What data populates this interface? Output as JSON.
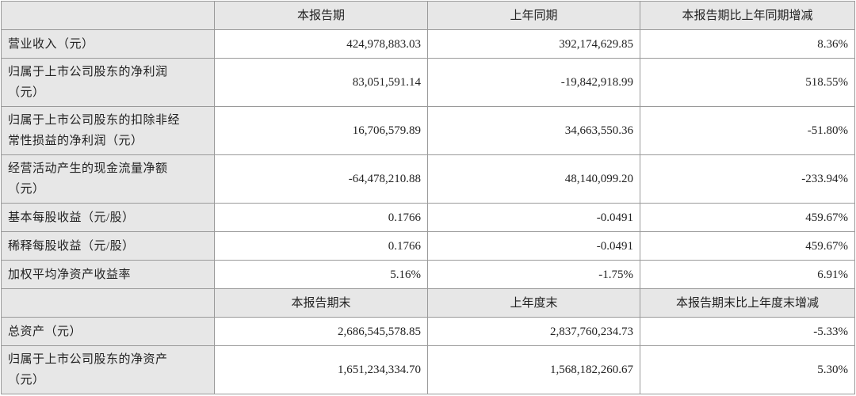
{
  "sections": [
    {
      "headers": [
        "本报告期",
        "上年同期",
        "本报告期比上年同期增减"
      ],
      "rows": [
        {
          "label": [
            "营业收入（元）"
          ],
          "cells": [
            "424,978,883.03",
            "392,174,629.85",
            "8.36%"
          ]
        },
        {
          "label": [
            "归属于上市公司股东的净利润",
            "（元）"
          ],
          "cells": [
            "83,051,591.14",
            "-19,842,918.99",
            "518.55%"
          ]
        },
        {
          "label": [
            "归属于上市公司股东的扣除非经",
            "常性损益的净利润（元）"
          ],
          "cells": [
            "16,706,579.89",
            "34,663,550.36",
            "-51.80%"
          ]
        },
        {
          "label": [
            "经营活动产生的现金流量净额",
            "（元）"
          ],
          "cells": [
            "-64,478,210.88",
            "48,140,099.20",
            "-233.94%"
          ]
        },
        {
          "label": [
            "基本每股收益（元/股）"
          ],
          "cells": [
            "0.1766",
            "-0.0491",
            "459.67%"
          ]
        },
        {
          "label": [
            "稀释每股收益（元/股）"
          ],
          "cells": [
            "0.1766",
            "-0.0491",
            "459.67%"
          ]
        },
        {
          "label": [
            "加权平均净资产收益率"
          ],
          "cells": [
            "5.16%",
            "-1.75%",
            "6.91%"
          ]
        }
      ]
    },
    {
      "headers": [
        "本报告期末",
        "上年度末",
        "本报告期末比上年度末增减"
      ],
      "rows": [
        {
          "label": [
            "总资产（元）"
          ],
          "cells": [
            "2,686,545,578.85",
            "2,837,760,234.73",
            "-5.33%"
          ]
        },
        {
          "label": [
            "归属于上市公司股东的净资产",
            "（元）"
          ],
          "cells": [
            "1,651,234,334.70",
            "1,568,182,260.67",
            "5.30%"
          ]
        }
      ]
    }
  ]
}
